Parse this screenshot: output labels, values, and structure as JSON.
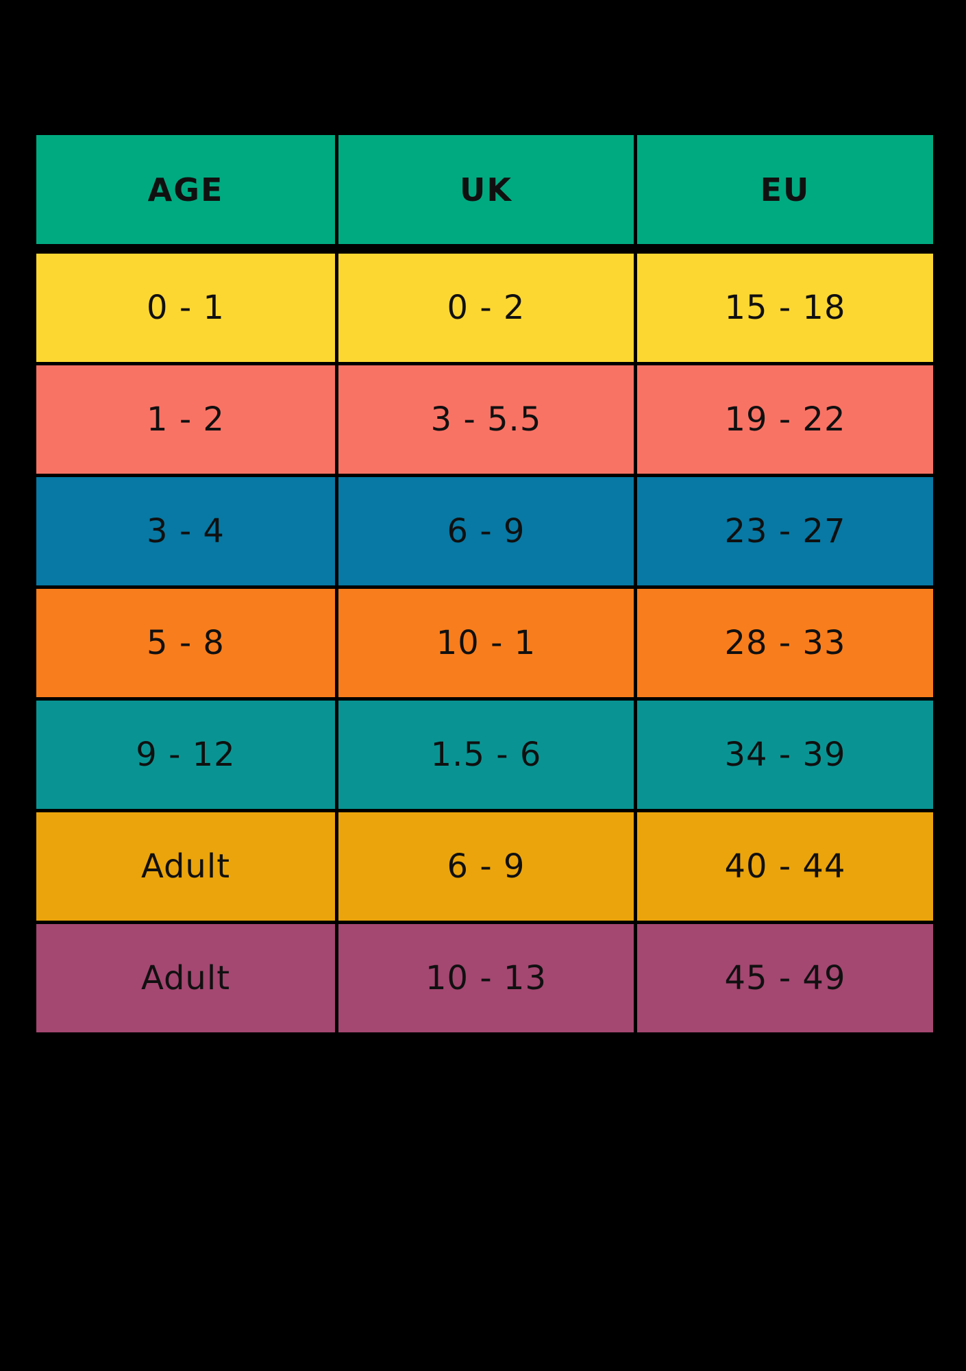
{
  "page": {
    "background": "#000000",
    "text_color": "#101010"
  },
  "table": {
    "header": {
      "bg": "#00AA80",
      "cells": [
        "AGE",
        "UK",
        "EU"
      ]
    },
    "rows": [
      {
        "bg": "#FDD731",
        "cells": [
          "0 - 1",
          "0 - 2",
          "15 - 18"
        ]
      },
      {
        "bg": "#F97365",
        "cells": [
          "1 - 2",
          "3 - 5.5",
          "19 - 22"
        ]
      },
      {
        "bg": "#0779A4",
        "cells": [
          "3 - 4",
          "6 - 9",
          "23 - 27"
        ]
      },
      {
        "bg": "#F87D1C",
        "cells": [
          "5 - 8",
          "10 - 1",
          "28 - 33"
        ]
      },
      {
        "bg": "#099493",
        "cells": [
          "9 - 12",
          "1.5 - 6",
          "34 - 39"
        ]
      },
      {
        "bg": "#EBA40B",
        "cells": [
          "Adult",
          "6 - 9",
          "40 - 44"
        ]
      },
      {
        "bg": "#A44771",
        "cells": [
          "Adult",
          "10 - 13",
          "45 - 49"
        ]
      }
    ]
  },
  "chart_data": {
    "type": "table",
    "title": "",
    "columns": [
      "AGE",
      "UK",
      "EU"
    ],
    "rows": [
      [
        "0 - 1",
        "0 - 2",
        "15 - 18"
      ],
      [
        "1 - 2",
        "3 - 5.5",
        "19 - 22"
      ],
      [
        "3 - 4",
        "6 - 9",
        "23 - 27"
      ],
      [
        "5 - 8",
        "10 - 1",
        "28 - 33"
      ],
      [
        "9 - 12",
        "1.5 - 6",
        "34 - 39"
      ],
      [
        "Adult",
        "6 - 9",
        "40 - 44"
      ],
      [
        "Adult",
        "10 - 13",
        "45 - 49"
      ]
    ],
    "row_colors": [
      "#FDD731",
      "#F97365",
      "#0779A4",
      "#F87D1C",
      "#099493",
      "#EBA40B",
      "#A44771"
    ],
    "header_color": "#00AA80",
    "legend_position": "none",
    "grid": true
  }
}
